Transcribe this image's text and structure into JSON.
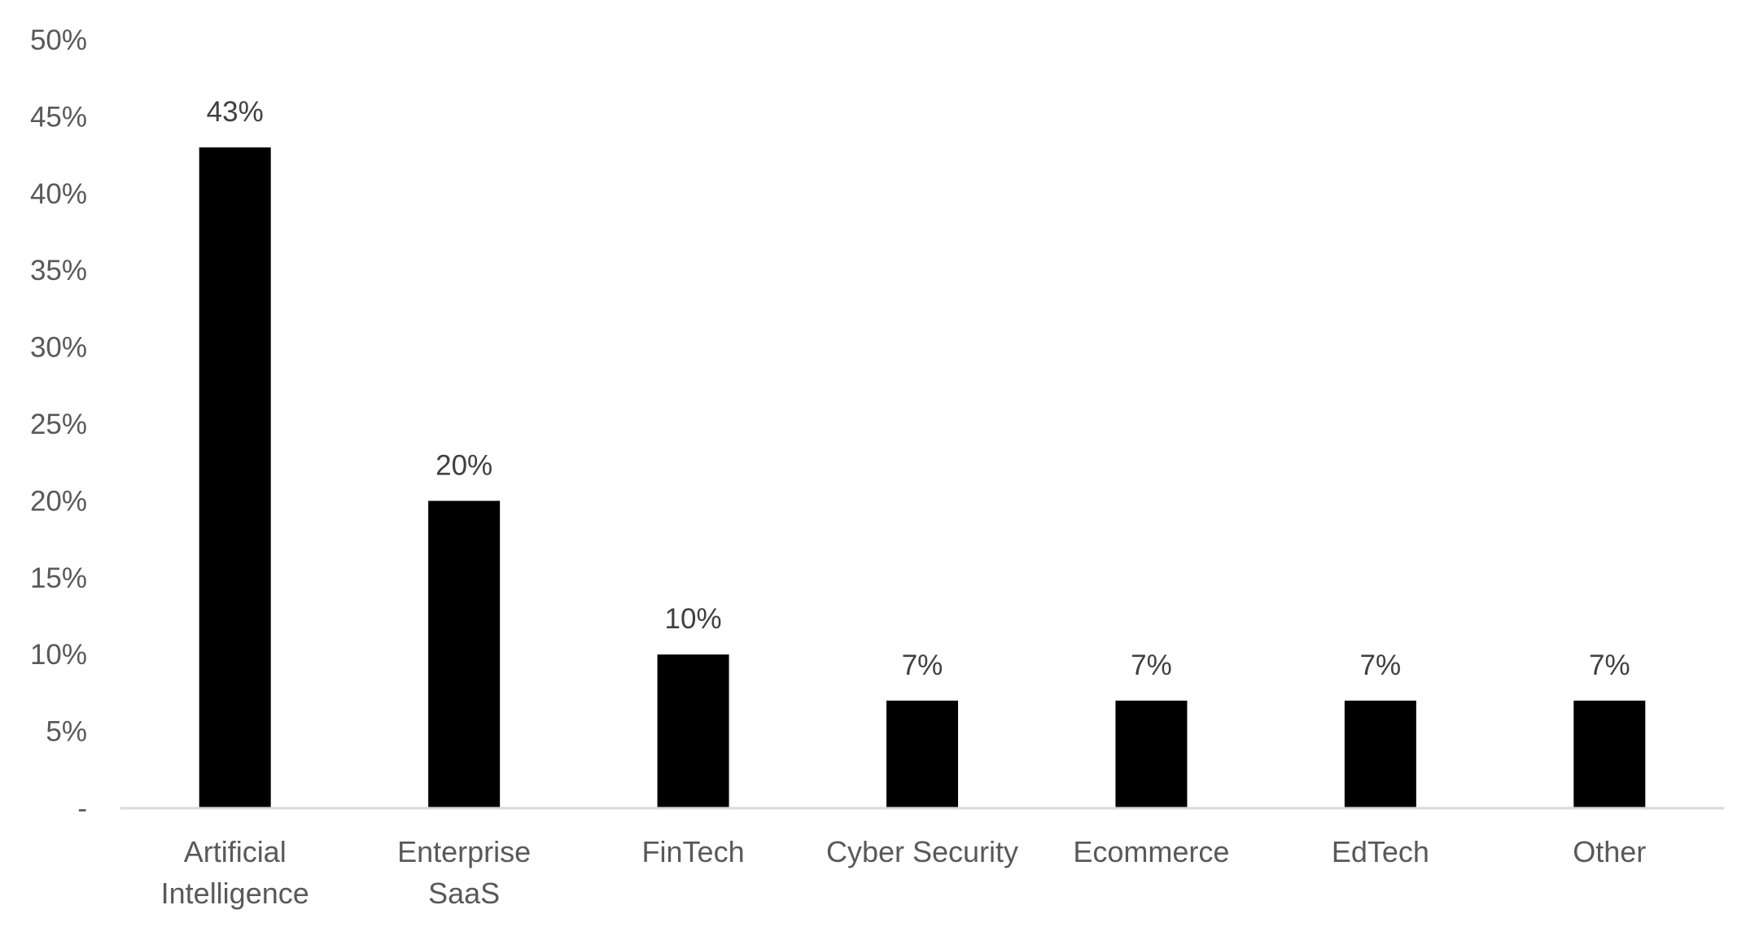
{
  "chart_data": {
    "type": "bar",
    "title": "",
    "xlabel": "",
    "ylabel": "",
    "categories": [
      [
        "Artificial",
        "Intelligence"
      ],
      [
        "Enterprise",
        "SaaS"
      ],
      [
        "FinTech"
      ],
      [
        "Cyber Security"
      ],
      [
        "Ecommerce"
      ],
      [
        "EdTech"
      ],
      [
        "Other"
      ]
    ],
    "values": [
      0.43,
      0.2,
      0.1,
      0.07,
      0.07,
      0.07,
      0.07
    ],
    "data_labels": [
      "43%",
      "20%",
      "10%",
      "7%",
      "7%",
      "7%",
      "7%"
    ],
    "ylim": [
      0,
      0.5
    ],
    "yticks": [
      0,
      0.05,
      0.1,
      0.15,
      0.2,
      0.25,
      0.3,
      0.35,
      0.4,
      0.45,
      0.5
    ],
    "ytick_labels": [
      "-",
      "5%",
      "10%",
      "15%",
      "20%",
      "25%",
      "30%",
      "35%",
      "40%",
      "45%",
      "50%"
    ],
    "grid": false,
    "legend": "none",
    "colors": {
      "bar": "#000000",
      "axis_line": "#d9d9d9",
      "tick_text": "#595959",
      "data_label_text": "#404040"
    }
  }
}
